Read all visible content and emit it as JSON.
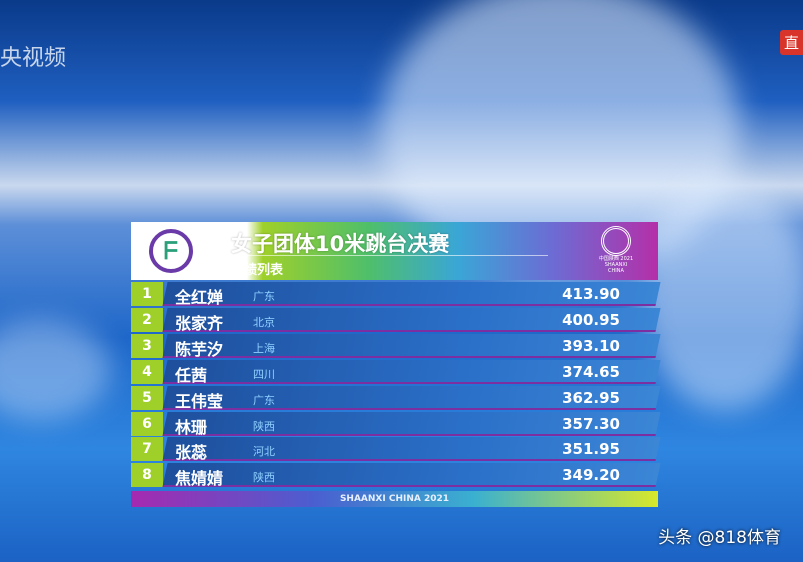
{
  "watermarks": {
    "top_left": "央视频",
    "top_right": "直",
    "bottom_right": "头条 @818体育"
  },
  "board": {
    "title": "女子团体10米跳台决赛",
    "subtitle": "成绩列表",
    "emblem_text": "中国陕西 2021",
    "emblem_text_en": "SHAANXI CHINA",
    "footer": "SHAANXI CHINA 2021",
    "rows": [
      {
        "rank": "1",
        "name": "全红婵",
        "province": "广东",
        "score": "413.90"
      },
      {
        "rank": "2",
        "name": "张家齐",
        "province": "北京",
        "score": "400.95"
      },
      {
        "rank": "3",
        "name": "陈芋汐",
        "province": "上海",
        "score": "393.10"
      },
      {
        "rank": "4",
        "name": "任茜",
        "province": "四川",
        "score": "374.65"
      },
      {
        "rank": "5",
        "name": "王伟莹",
        "province": "广东",
        "score": "362.95"
      },
      {
        "rank": "6",
        "name": "林珊",
        "province": "陕西",
        "score": "357.30"
      },
      {
        "rank": "7",
        "name": "张蕊",
        "province": "河北",
        "score": "351.95"
      },
      {
        "rank": "8",
        "name": "焦婧婧",
        "province": "陕西",
        "score": "349.20"
      }
    ]
  },
  "colors": {
    "rank_green": "#9fd02a",
    "row_blue": "#2a6fc8",
    "accent_purple": "#b52fa8"
  }
}
